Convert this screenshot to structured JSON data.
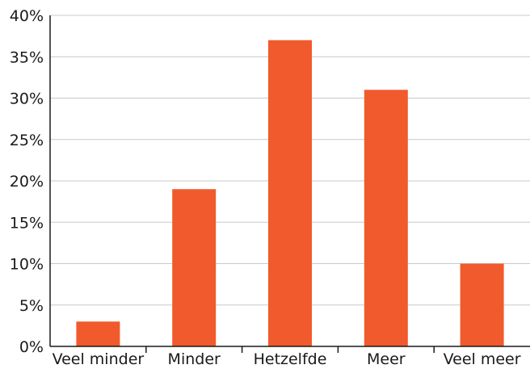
{
  "chart_data": {
    "type": "bar",
    "categories": [
      "Veel minder",
      "Minder",
      "Hetzelfde",
      "Meer",
      "Veel meer"
    ],
    "values": [
      3,
      19,
      37,
      31,
      10
    ],
    "ylim": [
      0,
      40
    ],
    "y_ticks": [
      0,
      5,
      10,
      15,
      20,
      25,
      30,
      35,
      40
    ],
    "y_tick_suffix": "%",
    "grid": "horizontal",
    "bar_color": "#f05a2d",
    "grid_color": "#c8c8c8",
    "axis_color": "#1a1a1a",
    "title": "",
    "xlabel": "",
    "ylabel": ""
  }
}
